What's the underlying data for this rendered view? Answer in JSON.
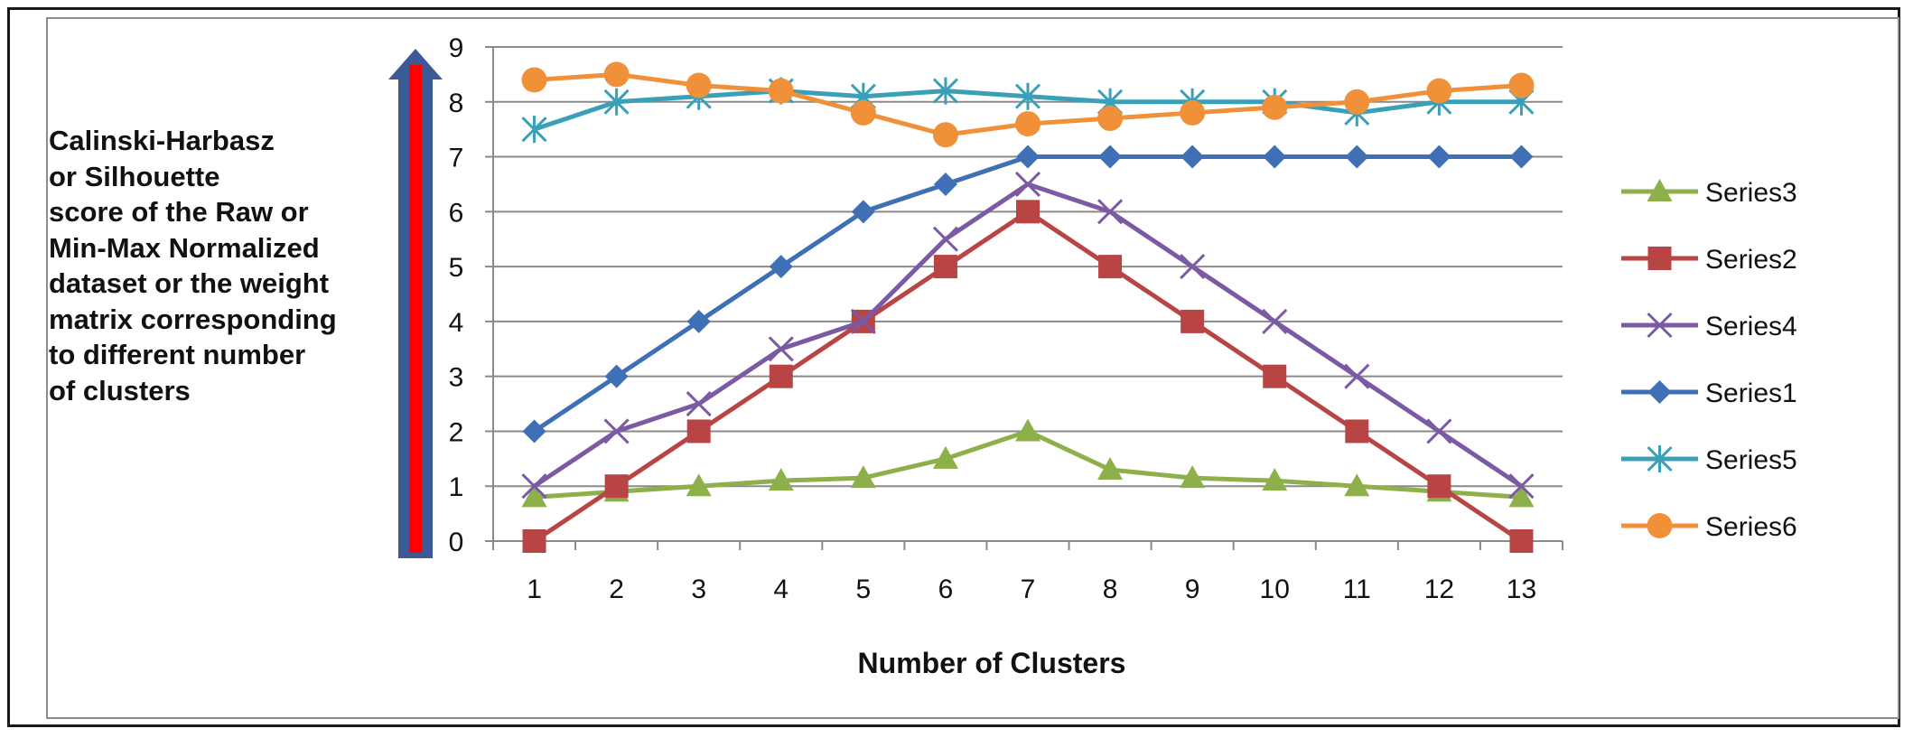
{
  "chart_data": {
    "type": "line",
    "title": "",
    "xlabel": "Number of Clusters",
    "ylabel": "Calinski-Harbasz\nor Silhouette\nscore of the Raw or\nMin-Max Normalized\ndataset or the weight\nmatrix corresponding\nto different number\n of clusters",
    "x": [
      1,
      2,
      3,
      4,
      5,
      6,
      7,
      8,
      9,
      10,
      11,
      12,
      13
    ],
    "ylim": [
      0,
      9
    ],
    "yticks": [
      0,
      1,
      2,
      3,
      4,
      5,
      6,
      7,
      8,
      9
    ],
    "grid": "horizontal",
    "legend_position": "right",
    "series": [
      {
        "name": "Series3",
        "color": "#8db04a",
        "marker": "triangle",
        "values": [
          0.8,
          0.9,
          1.0,
          1.1,
          1.15,
          1.5,
          2.0,
          1.3,
          1.15,
          1.1,
          1.0,
          0.9,
          0.8
        ]
      },
      {
        "name": "Series2",
        "color": "#b84444",
        "marker": "square",
        "values": [
          0,
          1,
          2,
          3,
          4,
          5,
          6,
          5,
          4,
          3,
          2,
          1,
          0
        ]
      },
      {
        "name": "Series4",
        "color": "#7b5aa3",
        "marker": "x",
        "values": [
          1,
          2,
          2.5,
          3.5,
          4,
          5.5,
          6.5,
          6,
          5,
          4,
          3,
          2,
          1
        ]
      },
      {
        "name": "Series1",
        "color": "#3f6fb5",
        "marker": "diamond",
        "values": [
          2,
          3,
          4,
          5,
          6,
          6.5,
          7,
          7,
          7,
          7,
          7,
          7,
          7
        ]
      },
      {
        "name": "Series5",
        "color": "#3aa0b8",
        "marker": "star",
        "values": [
          7.5,
          8.0,
          8.1,
          8.2,
          8.1,
          8.2,
          8.1,
          8.0,
          8.0,
          8.0,
          7.8,
          8.0,
          8.0
        ]
      },
      {
        "name": "Series6",
        "color": "#f0913a",
        "marker": "circle",
        "values": [
          8.4,
          8.5,
          8.3,
          8.2,
          7.8,
          7.4,
          7.6,
          7.7,
          7.8,
          7.9,
          8.0,
          8.2,
          8.3
        ]
      }
    ]
  },
  "arrow": {
    "outline_color": "#3b5a96",
    "fill_color": "#ff0000"
  }
}
